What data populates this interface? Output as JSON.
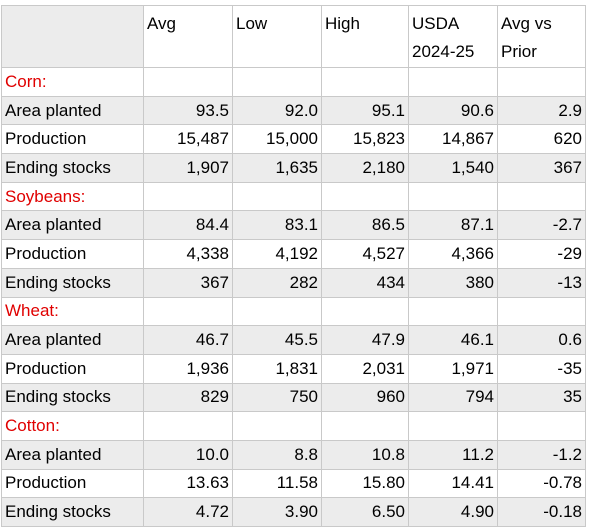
{
  "table": {
    "columns": [
      {
        "key": "label",
        "label": ""
      },
      {
        "key": "avg",
        "label": "Avg"
      },
      {
        "key": "low",
        "label": "Low"
      },
      {
        "key": "high",
        "label": "High"
      },
      {
        "key": "usda",
        "label": "USDA\n2024-25"
      },
      {
        "key": "avg_vs_prior",
        "label": "Avg vs\nPrior"
      }
    ],
    "sections": [
      {
        "name": "Corn:",
        "rows": [
          {
            "label": "Area planted",
            "values": [
              "93.5",
              "92.0",
              "95.1",
              "90.6",
              "2.9"
            ]
          },
          {
            "label": "Production",
            "values": [
              "15,487",
              "15,000",
              "15,823",
              "14,867",
              "620"
            ]
          },
          {
            "label": "Ending stocks",
            "values": [
              "1,907",
              "1,635",
              "2,180",
              "1,540",
              "367"
            ]
          }
        ]
      },
      {
        "name": "Soybeans:",
        "rows": [
          {
            "label": "Area planted",
            "values": [
              "84.4",
              "83.1",
              "86.5",
              "87.1",
              "-2.7"
            ]
          },
          {
            "label": "Production",
            "values": [
              "4,338",
              "4,192",
              "4,527",
              "4,366",
              "-29"
            ]
          },
          {
            "label": "Ending stocks",
            "values": [
              "367",
              "282",
              "434",
              "380",
              "-13"
            ]
          }
        ]
      },
      {
        "name": "Wheat:",
        "rows": [
          {
            "label": "Area planted",
            "values": [
              "46.7",
              "45.5",
              "47.9",
              "46.1",
              "0.6"
            ]
          },
          {
            "label": "Production",
            "values": [
              "1,936",
              "1,831",
              "2,031",
              "1,971",
              "-35"
            ]
          },
          {
            "label": "Ending stocks",
            "values": [
              "829",
              "750",
              "960",
              "794",
              "35"
            ]
          }
        ]
      },
      {
        "name": "Cotton:",
        "rows": [
          {
            "label": "Area planted",
            "values": [
              "10.0",
              "8.8",
              "10.8",
              "11.2",
              "-1.2"
            ]
          },
          {
            "label": "Production",
            "values": [
              "13.63",
              "11.58",
              "15.80",
              "14.41",
              "-0.78"
            ]
          },
          {
            "label": "Ending stocks",
            "values": [
              "4.72",
              "3.90",
              "6.50",
              "4.90",
              "-0.18"
            ]
          }
        ]
      }
    ]
  },
  "colors": {
    "section_label": "#e00000",
    "shaded_row": "#ececec",
    "grid_line": "#c9c9c9"
  }
}
